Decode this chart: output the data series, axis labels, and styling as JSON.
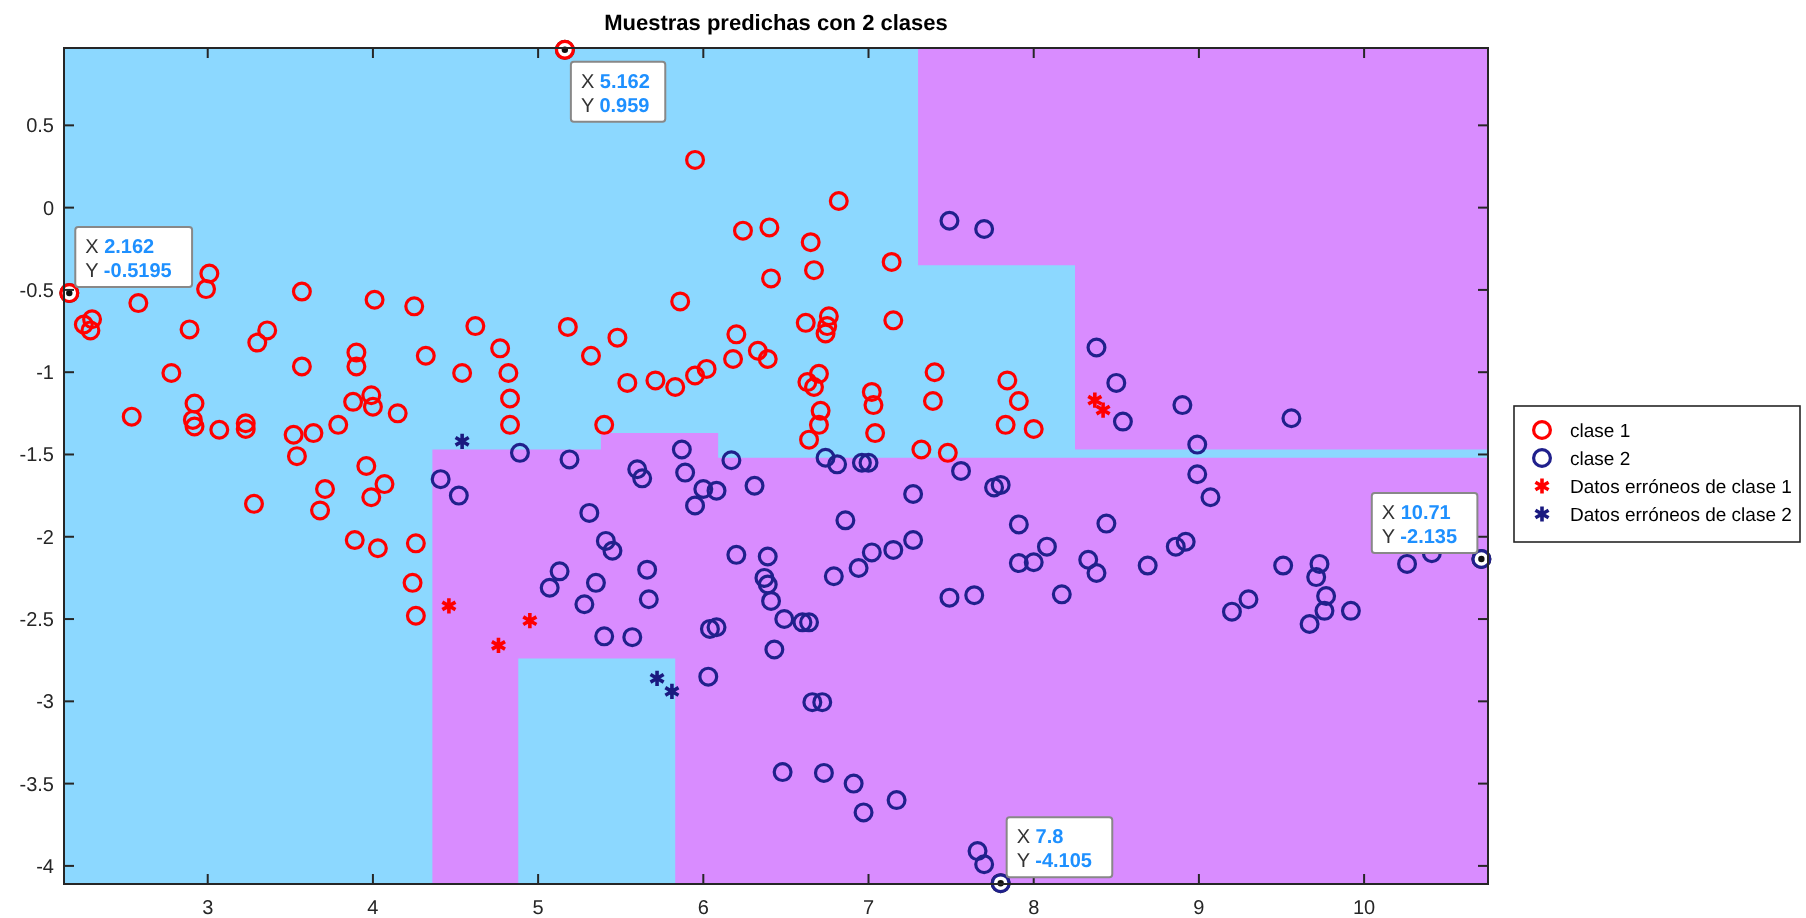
{
  "chart_data": {
    "type": "scatter",
    "title": "Muestras predichas con 2 clases",
    "xlim": [
      2.13,
      10.75
    ],
    "ylim": [
      -4.11,
      0.97
    ],
    "xticks": [
      3,
      4,
      5,
      6,
      7,
      8,
      9,
      10
    ],
    "yticks": [
      0.5,
      0,
      -0.5,
      -1,
      -1.5,
      -2,
      -2.5,
      -3,
      -3.5,
      -4
    ],
    "grid": false,
    "legend": "right",
    "series": [
      {
        "name": "clase 1",
        "color": "#ff0000",
        "marker": "circle",
        "x": [
          2.162,
          2.25,
          2.3,
          2.29,
          2.58,
          3.01,
          2.99,
          3.57,
          4.01,
          4.25,
          2.89,
          3.36,
          3.3,
          4.62,
          3.9,
          3.9,
          4.32,
          4.77,
          3.57,
          2.78,
          4.54,
          4.82,
          2.92,
          2.91,
          2.92,
          2.54,
          3.88,
          3.99,
          4.0,
          4.15,
          4.83,
          4.83,
          3.23,
          3.23,
          3.07,
          3.52,
          3.64,
          3.79,
          3.54,
          3.96,
          4.07,
          3.99,
          3.71,
          3.68,
          3.28,
          3.89,
          4.03,
          4.26,
          4.24,
          4.26,
          5.162,
          5.95,
          6.82,
          6.24,
          6.4,
          6.65,
          6.67,
          7.14,
          6.41,
          5.86,
          5.18,
          5.48,
          5.32,
          6.2,
          6.62,
          6.76,
          6.75,
          6.74,
          7.15,
          6.18,
          6.33,
          6.39,
          5.54,
          5.71,
          5.83,
          5.95,
          6.02,
          6.63,
          6.67,
          6.7,
          7.02,
          7.03,
          7.04,
          6.71,
          6.7,
          6.64,
          5.4,
          7.4,
          7.39,
          7.84,
          7.91,
          7.83,
          7.32,
          7.48,
          8.0
        ],
        "values": [
          -0.5195,
          -0.71,
          -0.678,
          -0.746,
          -0.58,
          -0.4,
          -0.495,
          -0.51,
          -0.56,
          -0.6,
          -0.74,
          -0.746,
          -0.82,
          -0.72,
          -0.88,
          -0.965,
          -0.9,
          -0.855,
          -0.965,
          -1.005,
          -1.005,
          -1.005,
          -1.19,
          -1.29,
          -1.33,
          -1.27,
          -1.18,
          -1.14,
          -1.21,
          -1.25,
          -1.16,
          -1.32,
          -1.31,
          -1.345,
          -1.35,
          -1.38,
          -1.37,
          -1.32,
          -1.51,
          -1.57,
          -1.68,
          -1.76,
          -1.71,
          -1.84,
          -1.8,
          -2.02,
          -2.07,
          -2.04,
          -2.28,
          -2.48,
          0.959,
          0.29,
          0.04,
          -0.14,
          -0.12,
          -0.21,
          -0.38,
          -0.33,
          -0.43,
          -0.57,
          -0.725,
          -0.79,
          -0.9,
          -0.77,
          -0.7,
          -0.66,
          -0.72,
          -0.765,
          -0.685,
          -0.92,
          -0.87,
          -0.92,
          -1.065,
          -1.05,
          -1.09,
          -1.02,
          -0.98,
          -1.06,
          -1.09,
          -1.01,
          -1.12,
          -1.2,
          -1.37,
          -1.235,
          -1.32,
          -1.41,
          -1.32,
          -1.0,
          -1.175,
          -1.05,
          -1.175,
          -1.32,
          -1.47,
          -1.49,
          -1.345
        ]
      },
      {
        "name": "clase 2",
        "color": "#20208c",
        "marker": "circle",
        "x": [
          4.89,
          4.41,
          4.52,
          5.07,
          7.49,
          7.7,
          8.38,
          8.5,
          8.54,
          8.9,
          9.56,
          8.99,
          5.19,
          5.87,
          5.6,
          5.63,
          5.89,
          6.17,
          6.74,
          6.81,
          6.96,
          7.0,
          7.56,
          6.0,
          6.08,
          6.31,
          5.95,
          7.27,
          7.76,
          7.8,
          5.31,
          6.86,
          7.91,
          5.41,
          5.45,
          6.2,
          6.39,
          7.02,
          7.15,
          7.27,
          6.94,
          6.79,
          5.66,
          5.13,
          5.35,
          5.28,
          5.67,
          6.37,
          6.39,
          6.41,
          7.49,
          7.64,
          7.91,
          5.4,
          5.57,
          6.04,
          6.08,
          6.49,
          6.6,
          6.64,
          6.43,
          6.03,
          6.66,
          6.72,
          6.48,
          6.73,
          6.91,
          6.97,
          7.17,
          7.66,
          7.7,
          7.8,
          8.99,
          9.07,
          8.44,
          8.08,
          8.0,
          8.33,
          8.38,
          8.17,
          8.69,
          8.86,
          8.92,
          9.2,
          9.3,
          9.51,
          9.73,
          9.71,
          9.77,
          9.76,
          9.67,
          9.92,
          10.26,
          10.41,
          10.71
        ],
        "values": [
          -1.49,
          -1.65,
          -1.75,
          -2.31,
          -0.08,
          -0.13,
          -0.85,
          -1.065,
          -1.3,
          -1.2,
          -1.28,
          -1.44,
          -1.53,
          -1.47,
          -1.59,
          -1.645,
          -1.61,
          -1.535,
          -1.52,
          -1.56,
          -1.55,
          -1.55,
          -1.6,
          -1.71,
          -1.72,
          -1.69,
          -1.81,
          -1.74,
          -1.7,
          -1.685,
          -1.855,
          -1.9,
          -1.925,
          -2.025,
          -2.085,
          -2.11,
          -2.12,
          -2.095,
          -2.08,
          -2.02,
          -2.19,
          -2.24,
          -2.2,
          -2.21,
          -2.28,
          -2.41,
          -2.38,
          -2.25,
          -2.29,
          -2.39,
          -2.37,
          -2.355,
          -2.16,
          -2.605,
          -2.61,
          -2.56,
          -2.55,
          -2.5,
          -2.52,
          -2.52,
          -2.685,
          -2.85,
          -3.005,
          -3.005,
          -3.43,
          -3.435,
          -3.5,
          -3.675,
          -3.6,
          -3.91,
          -3.99,
          -4.105,
          -1.62,
          -1.76,
          -1.92,
          -2.06,
          -2.155,
          -2.14,
          -2.22,
          -2.35,
          -2.175,
          -2.06,
          -2.03,
          -2.455,
          -2.38,
          -2.175,
          -2.165,
          -2.245,
          -2.36,
          -2.45,
          -2.53,
          -2.45,
          -2.165,
          -2.1,
          -2.135
        ]
      },
      {
        "name": "Datos erróneos de clase 1",
        "color": "#ff0000",
        "marker": "cross",
        "x": [
          4.46,
          4.76,
          4.95,
          8.37,
          8.42
        ],
        "values": [
          -2.42,
          -2.66,
          -2.51,
          -1.17,
          -1.23
        ]
      },
      {
        "name": "Datos erróneos de clase 2",
        "color": "#1a1a80",
        "marker": "cross",
        "x": [
          4.54,
          5.72,
          5.81
        ],
        "values": [
          -1.42,
          -2.86,
          -2.94
        ]
      }
    ],
    "annotations": [
      {
        "text": "X 2.162\nY -0.5195",
        "x": 2.162,
        "y": -0.5195
      },
      {
        "text": "X 5.162\nY 0.959",
        "x": 5.162,
        "y": 0.959
      },
      {
        "text": "X 7.8\nY -4.105",
        "x": 7.8,
        "y": -4.105
      },
      {
        "text": "X 10.71\nY -2.135",
        "x": 10.71,
        "y": -2.135
      }
    ]
  }
}
